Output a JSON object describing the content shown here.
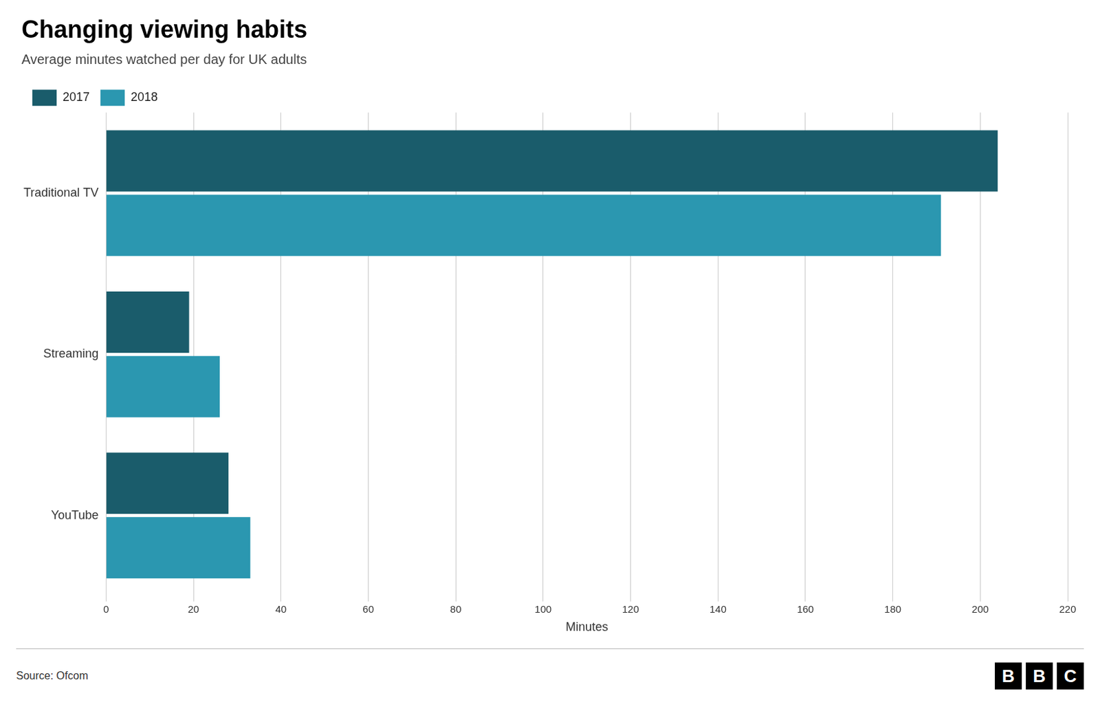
{
  "chart_data": {
    "type": "bar",
    "orientation": "horizontal",
    "title": "Changing viewing habits",
    "subtitle": "Average minutes watched per day for UK adults",
    "source": "Source: Ofcom",
    "logo": "BBC",
    "xlabel": "Minutes",
    "categories": [
      "Traditional TV",
      "Streaming",
      "YouTube"
    ],
    "series": [
      {
        "name": "2017",
        "color": "#1a5c6b",
        "values": [
          204,
          19,
          28
        ]
      },
      {
        "name": "2018",
        "color": "#2b97b0",
        "values": [
          191,
          26,
          33
        ]
      }
    ],
    "xlim": [
      0,
      220
    ],
    "xticks": [
      0,
      20,
      40,
      60,
      80,
      100,
      120,
      140,
      160,
      180,
      200,
      220
    ],
    "grid": true,
    "legend": "top-left"
  }
}
